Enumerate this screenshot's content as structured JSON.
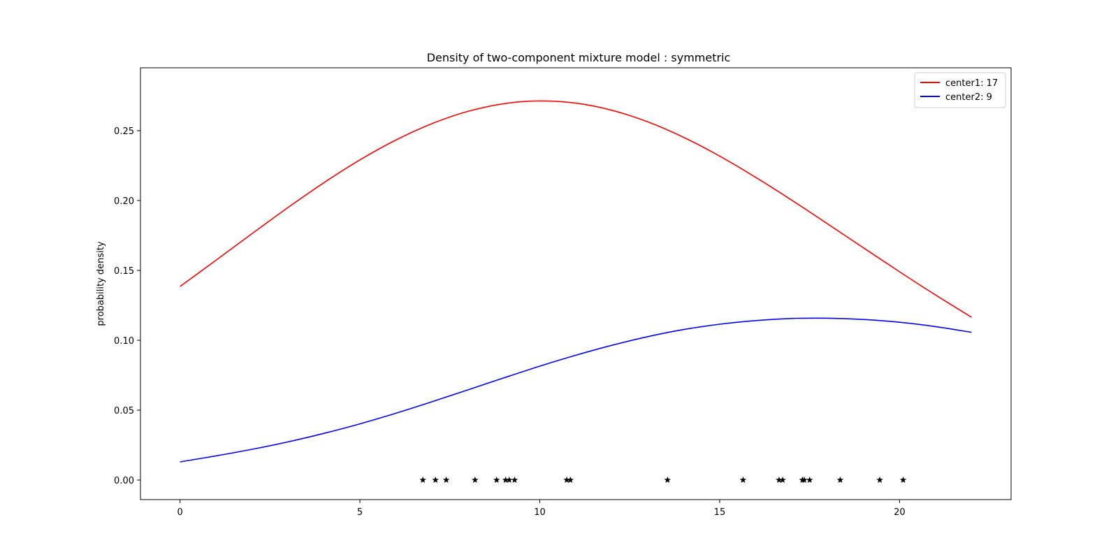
{
  "chart_data": {
    "type": "line",
    "title": "Density of two-component mixture model : symmetric",
    "xlabel": "",
    "ylabel": "probability density",
    "xlim": [
      -1.1,
      23.1
    ],
    "ylim": [
      -0.014,
      0.295
    ],
    "x_ticks": [
      0,
      5,
      10,
      15,
      20
    ],
    "y_ticks": [
      0.0,
      0.05,
      0.1,
      0.15,
      0.2,
      0.25
    ],
    "y_tick_labels": [
      "0.00",
      "0.05",
      "0.10",
      "0.15",
      "0.20",
      "0.25"
    ],
    "legend_position": "top-right",
    "grid": false,
    "series": [
      {
        "name": "center1: 17",
        "color": "#ff0000",
        "x": [
          0,
          1,
          2,
          3,
          4,
          5,
          6,
          7,
          8,
          9,
          10,
          11,
          12,
          13,
          14,
          15,
          16,
          17,
          18,
          19,
          20,
          21,
          22
        ],
        "y": [
          0.1385,
          0.1573,
          0.1763,
          0.195,
          0.2128,
          0.2291,
          0.2433,
          0.255,
          0.2638,
          0.2693,
          0.2713,
          0.2697,
          0.2646,
          0.2563,
          0.2452,
          0.2318,
          0.2166,
          0.2003,
          0.1833,
          0.1661,
          0.149,
          0.1324,
          0.1165
        ]
      },
      {
        "name": "center2: 9",
        "color": "#0000ff",
        "x": [
          0,
          1,
          2,
          3,
          4,
          5,
          6,
          7,
          8,
          9,
          10,
          11,
          12,
          13,
          14,
          15,
          16,
          17,
          18,
          19,
          20,
          21,
          22
        ],
        "y": [
          0.013,
          0.0173,
          0.022,
          0.0273,
          0.0334,
          0.0402,
          0.0478,
          0.056,
          0.0645,
          0.0731,
          0.0815,
          0.0893,
          0.0964,
          0.1026,
          0.1077,
          0.1115,
          0.1141,
          0.1156,
          0.1158,
          0.1149,
          0.1129,
          0.1098,
          0.1057
        ]
      }
    ],
    "observations": {
      "marker": "star",
      "color": "#000000",
      "y": 0,
      "x": [
        6.75,
        7.1,
        7.4,
        8.2,
        8.8,
        9.05,
        9.15,
        9.3,
        10.75,
        10.85,
        13.55,
        15.65,
        16.65,
        16.75,
        17.3,
        17.35,
        17.5,
        18.35,
        19.45,
        20.1
      ]
    }
  }
}
